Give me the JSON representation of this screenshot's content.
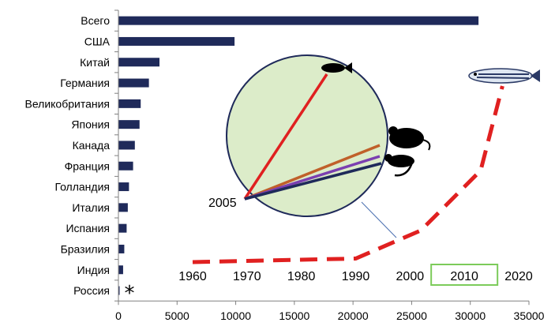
{
  "chart_data": {
    "type": "bar",
    "orientation": "horizontal",
    "categories": [
      "Всего",
      "США",
      "Китай",
      "Германия",
      "Великобритания",
      "Япония",
      "Канада",
      "Франция",
      "Голландия",
      "Италия",
      "Испания",
      "Бразилия",
      "Индия",
      "Россия"
    ],
    "values": [
      30700,
      9900,
      3500,
      2600,
      1900,
      1800,
      1400,
      1250,
      900,
      800,
      700,
      500,
      400,
      100
    ],
    "xlim": [
      0,
      35000
    ],
    "xticks": [
      "0",
      "5000",
      "10000",
      "15000",
      "20000",
      "25000",
      "30000",
      "35000"
    ],
    "bar_color": "#1f2a5a",
    "russia_marker": "*",
    "inset": {
      "type": "line",
      "x_ticks": [
        "1960",
        "1970",
        "1980",
        "1990",
        "2000",
        "2010",
        "2020"
      ],
      "x": [
        1960,
        1990,
        2002,
        2013,
        2017
      ],
      "y": [
        0.0,
        0.02,
        0.18,
        0.52,
        1.0
      ],
      "line_color": "#e02020",
      "line_style": "dashed",
      "highlighted_tick": "2010",
      "highlight_color": "#7ccb5a",
      "circle_label": "2005",
      "circle_fill": "#dcecc9",
      "circle_rays": [
        {
          "color": "#e02020",
          "icon": "fish-icon"
        },
        {
          "color": "#c0602a",
          "icon": "rat-icon"
        },
        {
          "color": "#7b3fb0",
          "icon": "mouse-icon"
        },
        {
          "color": "#1f2a5a",
          "icon": "mouse-icon"
        }
      ],
      "top_icon": "zebrafish-icon"
    }
  }
}
